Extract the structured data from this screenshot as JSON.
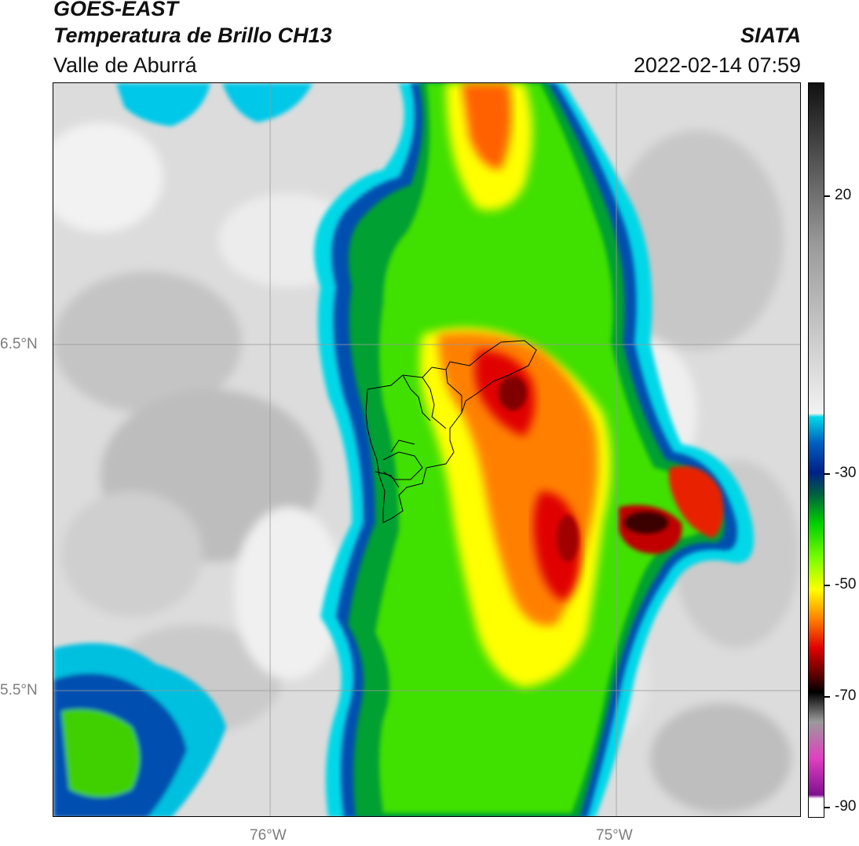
{
  "header": {
    "satellite": "GOES-EAST",
    "product": "Temperatura de Brillo CH13",
    "region": "Valle de Aburrá",
    "agency": "SIATA",
    "datetime": "2022-02-14 07:59"
  },
  "map": {
    "lat_labels": [
      {
        "text": "6.5°N",
        "value": 6.5
      },
      {
        "text": "5.5°N",
        "value": 5.5
      }
    ],
    "lon_labels": [
      {
        "text": "76°W",
        "value": -76.0
      },
      {
        "text": "75°W",
        "value": -75.0
      }
    ],
    "features": [
      "cloud-top brightness temperature field",
      "municipal boundaries Valle de Aburrá"
    ]
  },
  "colorbar": {
    "ticks": [
      "20",
      "-30",
      "-50",
      "-70",
      "-90"
    ],
    "colors": {
      "warm_gray_top": "#111111",
      "gray": "#9a9a9a",
      "light": "#f2f2f2",
      "cyan": "#00d8e8",
      "blue": "#0060c0",
      "navy": "#00208a",
      "dark_green": "#006040",
      "green": "#00d000",
      "lime": "#80ff00",
      "yellow": "#ffff00",
      "orange": "#ff8000",
      "red": "#e00000",
      "dark_red": "#500000",
      "black": "#000000",
      "pink": "#e040c0",
      "purple": "#801090",
      "white": "#ffffff"
    }
  }
}
